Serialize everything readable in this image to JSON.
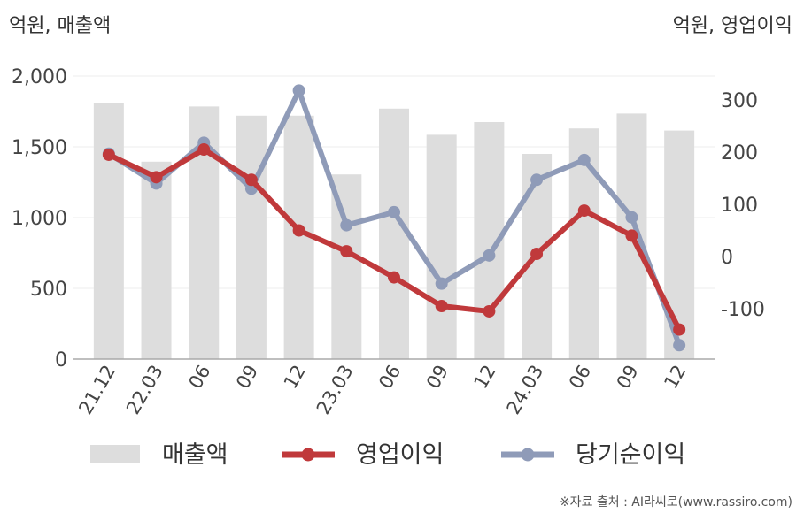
{
  "chart_data": {
    "type": "bar+line",
    "left_axis_label": "억원, 매출액",
    "right_axis_label": "억원, 영업이익",
    "categories": [
      "21.12",
      "22.03",
      "06",
      "09",
      "12",
      "23.03",
      "06",
      "09",
      "12",
      "24.03",
      "06",
      "09",
      "12"
    ],
    "left_axis": {
      "ylim": [
        0,
        2000
      ],
      "ticks": [
        0,
        500,
        1000,
        1500,
        2000
      ],
      "tick_labels": [
        "0",
        "500",
        "1,000",
        "1,500",
        "2,000"
      ]
    },
    "right_axis": {
      "ylim": [
        -200,
        340
      ],
      "ticks": [
        -100,
        0,
        100,
        200,
        300
      ],
      "tick_labels": [
        "-100",
        "0",
        "100",
        "200",
        "300"
      ]
    },
    "series": [
      {
        "name": "매출액",
        "type": "bar",
        "axis": "left",
        "color": "#dddddd",
        "values": [
          1810,
          1395,
          1785,
          1720,
          1720,
          1305,
          1770,
          1585,
          1675,
          1450,
          1630,
          1735,
          1615
        ]
      },
      {
        "name": "영업이익",
        "type": "line",
        "axis": "right",
        "color": "#c0393b",
        "values": [
          195,
          152,
          205,
          147,
          50,
          10,
          -40,
          -95,
          -105,
          5,
          88,
          40,
          -140
        ]
      },
      {
        "name": "당기순이익",
        "type": "line",
        "axis": "right",
        "color": "#8f9bb8",
        "values": [
          197,
          140,
          218,
          130,
          318,
          60,
          85,
          -52,
          2,
          147,
          185,
          75,
          -170
        ]
      }
    ],
    "grid": true,
    "legend_position": "bottom"
  },
  "source_text": "※자료 출처 : AI라씨로(www.rassiro.com)"
}
